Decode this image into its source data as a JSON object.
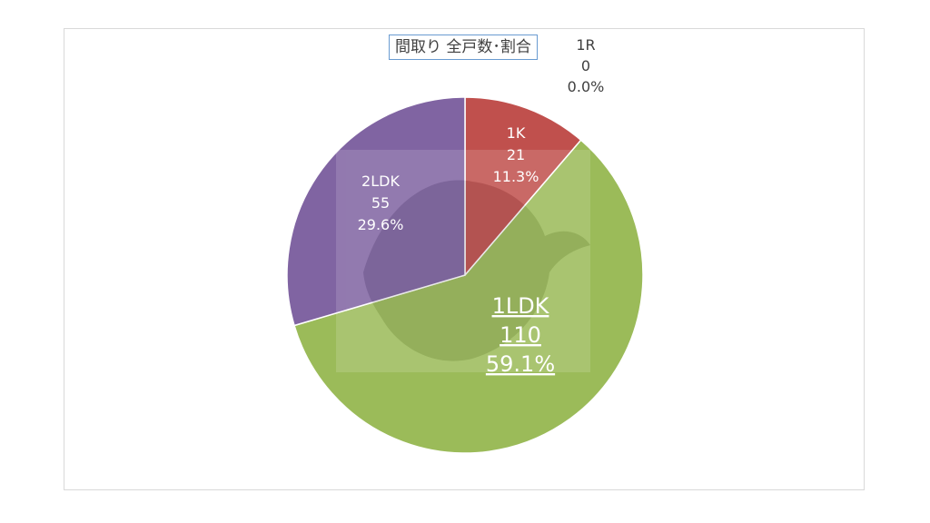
{
  "chart_data": {
    "type": "pie",
    "title": "間取り 全戸数･割合",
    "slices": [
      {
        "label": "1R",
        "value": 0,
        "percent": "0.0%",
        "color": "#4f81bd"
      },
      {
        "label": "1K",
        "value": 21,
        "percent": "11.3%",
        "color": "#c0504d"
      },
      {
        "label": "1LDK",
        "value": 110,
        "percent": "59.1%",
        "color": "#9bbb59"
      },
      {
        "label": "2LDK",
        "value": 55,
        "percent": "29.6%",
        "color": "#8064a2"
      }
    ],
    "start_angle_deg": 0,
    "direction": "clockwise"
  },
  "colors": {
    "label_dark": "#404040",
    "label_light": "#ffffff",
    "border": "#d9d9d9",
    "title_border": "#6a9bd1"
  }
}
